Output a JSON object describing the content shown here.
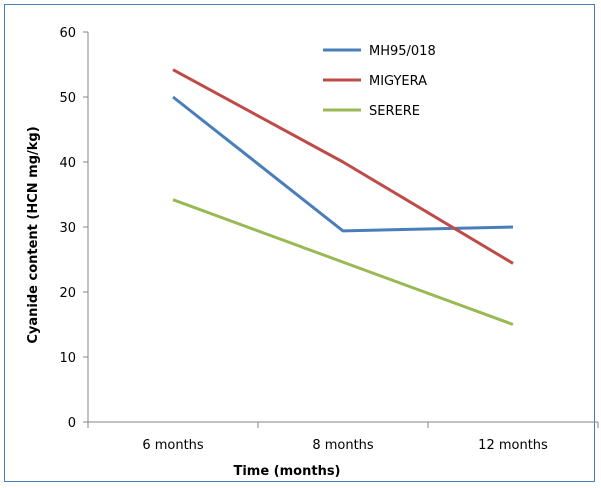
{
  "chart_data": {
    "type": "line",
    "title": "",
    "xlabel": "Time (months)",
    "ylabel": "Cyanide content (HCN mg/kg)",
    "categories": [
      "6 months",
      "8 months",
      "12 months"
    ],
    "ylim": [
      0,
      60
    ],
    "yticks": [
      0,
      10,
      20,
      30,
      40,
      50,
      60
    ],
    "grid": false,
    "legend_position": "top-right",
    "series": [
      {
        "name": "MH95/018",
        "color": "#4a7ebb",
        "values": [
          50,
          29.4,
          30
        ]
      },
      {
        "name": "MIGYERA",
        "color": "#be4b48",
        "values": [
          54.2,
          40,
          24.4
        ]
      },
      {
        "name": "SERERE",
        "color": "#98b954",
        "values": [
          34.2,
          24.6,
          15
        ]
      }
    ]
  }
}
